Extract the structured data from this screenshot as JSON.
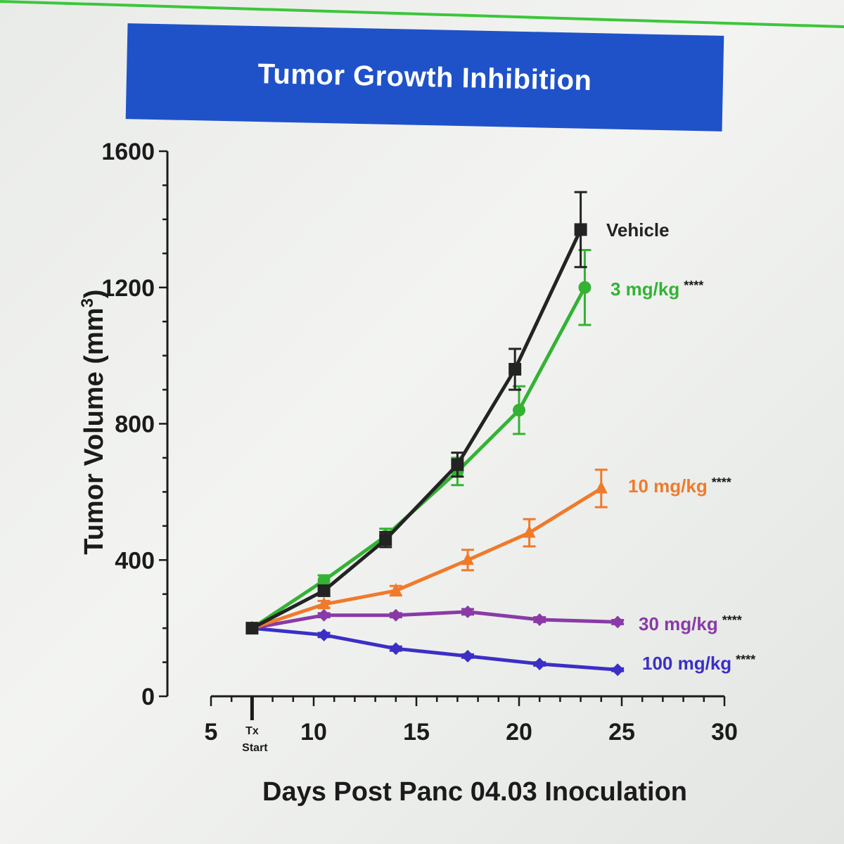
{
  "title": "Tumor Growth Inhibition",
  "colors": {
    "banner": "#1f52c9",
    "top_rule": "#3cc63a"
  },
  "chart_data": {
    "type": "line",
    "title": "Tumor Growth Inhibition",
    "xlabel": "Days Post  Panc 04.03 Inoculation",
    "ylabel": "Tumor Volume (mm3)",
    "ylabel_main": "Tumor Volume (mm",
    "ylabel_sup": "3",
    "ylabel_close": ")",
    "xlim": [
      5,
      30
    ],
    "ylim": [
      0,
      1600
    ],
    "x_ticks": [
      "5",
      "10",
      "15",
      "20",
      "25",
      "30"
    ],
    "y_ticks": [
      "0",
      "400",
      "800",
      "1200",
      "1600"
    ],
    "tx_marker": {
      "x": 7,
      "label_line1": "Tx",
      "label_line2": "Start"
    },
    "grid": false,
    "legend": "inline-right",
    "series": [
      {
        "name": "Vehicle",
        "significance": "",
        "color": "#232323",
        "marker": "square",
        "x": [
          7,
          10.5,
          13.5,
          17,
          19.8,
          23
        ],
        "y": [
          200,
          310,
          460,
          680,
          960,
          1370
        ],
        "err": [
          0,
          15,
          22,
          35,
          60,
          110
        ]
      },
      {
        "name": "3 mg/kg",
        "significance": "****",
        "color": "#34b234",
        "marker": "circle",
        "x": [
          7,
          10.5,
          13.5,
          17,
          20,
          23.2
        ],
        "y": [
          200,
          340,
          470,
          660,
          840,
          1200
        ],
        "err": [
          0,
          15,
          22,
          40,
          70,
          110
        ]
      },
      {
        "name": "10 mg/kg",
        "significance": "****",
        "color": "#f07a2a",
        "marker": "triangle",
        "x": [
          7,
          10.5,
          14,
          17.5,
          20.5,
          24
        ],
        "y": [
          200,
          270,
          310,
          400,
          480,
          610
        ],
        "err": [
          0,
          10,
          14,
          30,
          40,
          55
        ]
      },
      {
        "name": "30 mg/kg",
        "significance": "****",
        "color": "#8a3aa6",
        "marker": "diamond",
        "x": [
          7,
          10.5,
          14,
          17.5,
          21,
          24.8
        ],
        "y": [
          200,
          238,
          238,
          248,
          225,
          218
        ],
        "err": [
          0,
          6,
          6,
          8,
          7,
          6
        ]
      },
      {
        "name": "100 mg/kg",
        "significance": "****",
        "color": "#3b2fc6",
        "marker": "diamond",
        "x": [
          7,
          10.5,
          14,
          17.5,
          21,
          24.8
        ],
        "y": [
          200,
          180,
          140,
          118,
          95,
          78
        ],
        "err": [
          0,
          6,
          6,
          5,
          5,
          4
        ]
      }
    ]
  }
}
